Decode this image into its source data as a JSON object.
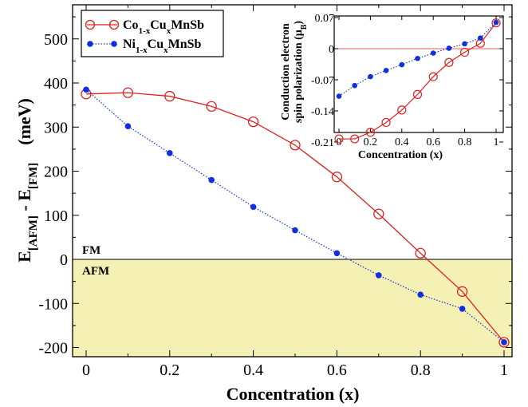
{
  "chart_data": [
    {
      "type": "line",
      "xlabel": "Concentration  (x)",
      "ylabel_main": "E",
      "ylabel_sub1": "[AFM]",
      "ylabel_mid": " - E",
      "ylabel_sub2": "[FM]",
      "ylabel_unit": "(meV)",
      "xlim": [
        0,
        1
      ],
      "ylim": [
        -220,
        570
      ],
      "xticks": [
        0,
        0.2,
        0.4,
        0.6,
        0.8,
        1
      ],
      "xtick_labels": [
        "0",
        "0.2",
        "0.4",
        "0.6",
        "0.8",
        "1"
      ],
      "yticks": [
        -200,
        -100,
        0,
        100,
        200,
        300,
        400,
        500
      ],
      "ytick_labels": [
        "-200",
        "-100",
        "0",
        "100",
        "200",
        "300",
        "400",
        "500"
      ],
      "region_labels": {
        "above": "FM",
        "below": "AFM"
      },
      "shaded_region": {
        "from": -220,
        "to": 0,
        "color": "#f5f0b4"
      },
      "x": [
        0,
        0.1,
        0.2,
        0.3,
        0.4,
        0.5,
        0.6,
        0.7,
        0.8,
        0.9,
        1
      ],
      "series": [
        {
          "name": "Co1-xCuxMnSb",
          "label_parts": [
            "Co",
            "1-x",
            "Cu",
            "x",
            "MnSb"
          ],
          "color": "#e02020",
          "marker": "open-circle",
          "line": "solid",
          "values": [
            375,
            378,
            370,
            347,
            312,
            259,
            187,
            103,
            14,
            -73,
            -188
          ]
        },
        {
          "name": "Ni1-xCuxMnSb",
          "label_parts": [
            "Ni",
            "1-x",
            "Cu",
            "x",
            "MnSb"
          ],
          "color": "#1030e0",
          "marker": "filled-circle",
          "line": "dotted",
          "values": [
            385,
            302,
            241,
            180,
            119,
            66,
            14,
            -36,
            -80,
            -112,
            -188
          ]
        }
      ],
      "legend_position": "top-left"
    },
    {
      "type": "line",
      "xlabel": "Concentration (x)",
      "ylabel_line1": "Conduction electron",
      "ylabel_line2": "spin polarization (μ",
      "ylabel_sub": "B",
      "ylabel_end": ")",
      "xlim": [
        0,
        1
      ],
      "ylim": [
        -0.245,
        0.1
      ],
      "xticks": [
        0,
        0.2,
        0.4,
        0.6,
        0.8,
        1
      ],
      "xtick_labels": [
        "0",
        "0.2",
        "0.4",
        "0.6",
        "0.8",
        "1"
      ],
      "yticks": [
        0.07,
        0,
        -0.07,
        -0.14,
        -0.21
      ],
      "ytick_labels": [
        "0.07",
        "0",
        "-0.07",
        "-0.14",
        "-0.21"
      ],
      "zero_line": true,
      "x": [
        0,
        0.1,
        0.2,
        0.3,
        0.4,
        0.5,
        0.6,
        0.7,
        0.8,
        0.9,
        1
      ],
      "series": [
        {
          "name": "Co1-xCuxMnSb",
          "color": "#e02020",
          "marker": "open-circle",
          "line": "solid",
          "values": [
            -0.203,
            -0.203,
            -0.188,
            -0.166,
            -0.138,
            -0.103,
            -0.063,
            -0.031,
            -0.008,
            0.012,
            0.058
          ]
        },
        {
          "name": "Ni1-xCuxMnSb",
          "color": "#1030e0",
          "marker": "filled-circle",
          "line": "dotted",
          "values": [
            -0.107,
            -0.083,
            -0.063,
            -0.049,
            -0.036,
            -0.022,
            -0.01,
            0.001,
            0.011,
            0.024,
            0.059
          ]
        }
      ]
    }
  ]
}
